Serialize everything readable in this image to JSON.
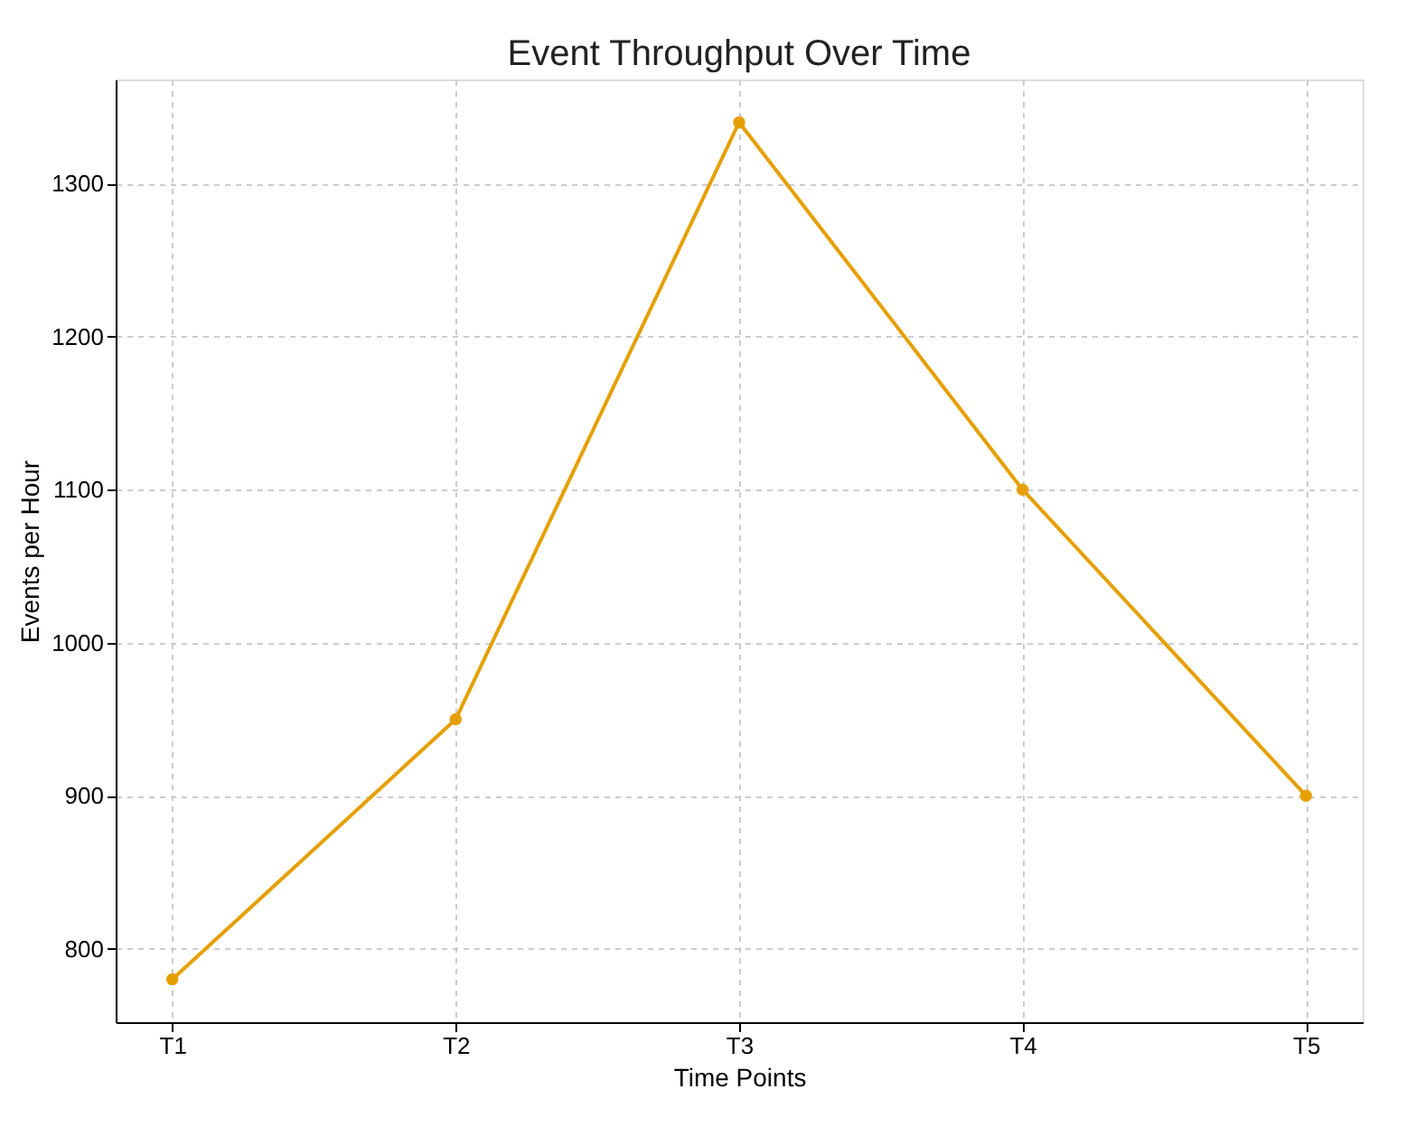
{
  "chart_data": {
    "type": "line",
    "title": "Event Throughput Over Time",
    "xlabel": "Time Points",
    "ylabel": "Events per Hour",
    "categories": [
      "T1",
      "T2",
      "T3",
      "T4",
      "T5"
    ],
    "series": [
      {
        "color": "#e69f00",
        "values": [
          780,
          950,
          1340,
          1100,
          900
        ]
      }
    ],
    "ylim": [
      752,
      1368
    ],
    "yticks": [
      800,
      900,
      1000,
      1100,
      1200,
      1300
    ],
    "grid": true,
    "marker": "circle",
    "line_style": "solid"
  }
}
